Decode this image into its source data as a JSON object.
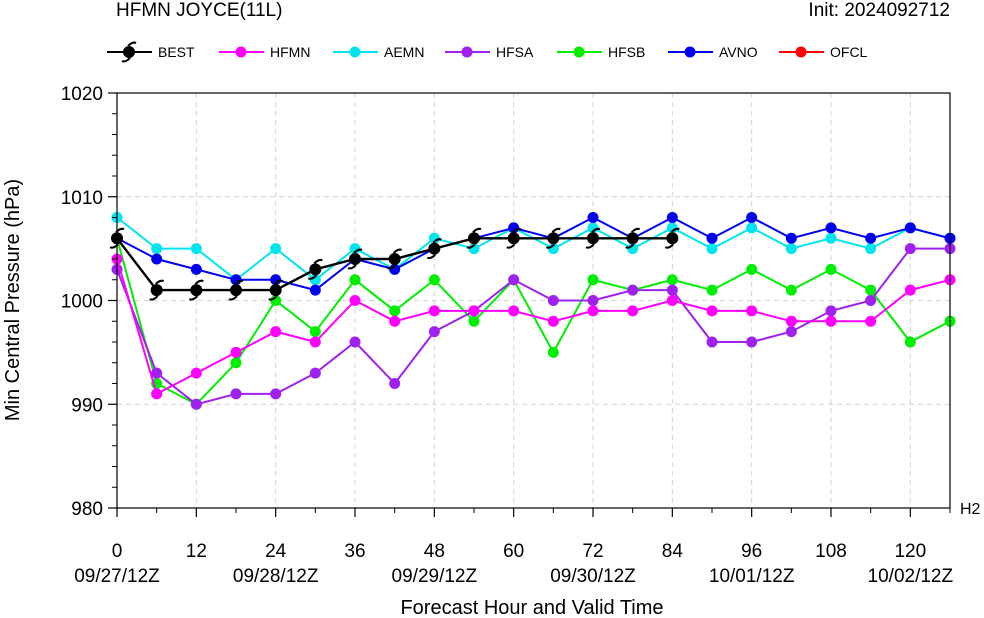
{
  "header": {
    "title": "HFMN JOYCE(11L)",
    "init": "Init: 2024092712"
  },
  "chart_data": {
    "type": "line",
    "xlabel": "Forecast Hour and Valid Time",
    "ylabel": "Min Central Pressure (hPa)",
    "xlim": [
      0,
      126
    ],
    "ylim": [
      980,
      1020
    ],
    "grid": true,
    "legend_position": "top",
    "corner_label": "H2",
    "y_ticks": [
      "980",
      "990",
      "1000",
      "1010",
      "1020"
    ],
    "x_ticks": [
      {
        "x": 0,
        "label": "0",
        "date": "09/27/12Z"
      },
      {
        "x": 12,
        "label": "12",
        "date": ""
      },
      {
        "x": 24,
        "label": "24",
        "date": "09/28/12Z"
      },
      {
        "x": 36,
        "label": "36",
        "date": ""
      },
      {
        "x": 48,
        "label": "48",
        "date": "09/29/12Z"
      },
      {
        "x": 60,
        "label": "60",
        "date": ""
      },
      {
        "x": 72,
        "label": "72",
        "date": "09/30/12Z"
      },
      {
        "x": 84,
        "label": "84",
        "date": ""
      },
      {
        "x": 96,
        "label": "96",
        "date": "10/01/12Z"
      },
      {
        "x": 108,
        "label": "108",
        "date": ""
      },
      {
        "x": 120,
        "label": "120",
        "date": "10/02/12Z"
      }
    ],
    "series": [
      {
        "name": "BEST",
        "color": "#000000",
        "marker": "hurricane",
        "x": [
          0,
          6,
          12,
          18,
          24,
          30,
          36,
          42,
          48,
          54,
          60,
          66,
          72,
          78,
          84
        ],
        "y": [
          1006,
          1001,
          1001,
          1001,
          1001,
          1003,
          1004,
          1004,
          1005,
          1006,
          1006,
          1006,
          1006,
          1006,
          1006
        ]
      },
      {
        "name": "HFMN",
        "color": "#ff00ff",
        "marker": "circle",
        "x": [
          0,
          6,
          12,
          18,
          24,
          30,
          36,
          42,
          48,
          54,
          60,
          66,
          72,
          78,
          84,
          90,
          96,
          102,
          108,
          114,
          120,
          126
        ],
        "y": [
          1004,
          991,
          993,
          995,
          997,
          996,
          1000,
          998,
          999,
          999,
          999,
          998,
          999,
          999,
          1000,
          999,
          999,
          998,
          998,
          998,
          1001,
          1002
        ]
      },
      {
        "name": "AEMN",
        "color": "#00e5ee",
        "marker": "circle",
        "x": [
          0,
          6,
          12,
          18,
          24,
          30,
          36,
          42,
          48,
          54,
          60,
          66,
          72,
          78,
          84,
          90,
          96,
          102,
          108,
          114,
          120,
          126
        ],
        "y": [
          1008,
          1005,
          1005,
          1002,
          1005,
          1002,
          1005,
          1003,
          1006,
          1005,
          1007,
          1005,
          1007,
          1005,
          1007,
          1005,
          1007,
          1005,
          1006,
          1005,
          1007,
          1006
        ]
      },
      {
        "name": "HFSA",
        "color": "#a020f0",
        "marker": "circle",
        "x": [
          0,
          6,
          12,
          18,
          24,
          30,
          36,
          42,
          48,
          54,
          60,
          66,
          72,
          78,
          84,
          90,
          96,
          102,
          108,
          114,
          120,
          126
        ],
        "y": [
          1003,
          993,
          990,
          991,
          991,
          993,
          996,
          992,
          997,
          999,
          1002,
          1000,
          1000,
          1001,
          1001,
          996,
          996,
          997,
          999,
          1000,
          1005,
          1005
        ]
      },
      {
        "name": "HFSB",
        "color": "#00ee00",
        "marker": "circle",
        "x": [
          0,
          6,
          12,
          18,
          24,
          30,
          36,
          42,
          48,
          54,
          60,
          66,
          72,
          78,
          84,
          90,
          96,
          102,
          108,
          114,
          120,
          126
        ],
        "y": [
          1006,
          992,
          990,
          994,
          1000,
          997,
          1002,
          999,
          1002,
          998,
          1002,
          995,
          1002,
          1001,
          1002,
          1001,
          1003,
          1001,
          1003,
          1001,
          996,
          998
        ]
      },
      {
        "name": "AVNO",
        "color": "#0000ee",
        "marker": "circle",
        "x": [
          0,
          6,
          12,
          18,
          24,
          30,
          36,
          42,
          48,
          54,
          60,
          66,
          72,
          78,
          84,
          90,
          96,
          102,
          108,
          114,
          120,
          126
        ],
        "y": [
          1006,
          1004,
          1003,
          1002,
          1002,
          1001,
          1004,
          1003,
          1005,
          1006,
          1007,
          1006,
          1008,
          1006,
          1008,
          1006,
          1008,
          1006,
          1007,
          1006,
          1007,
          1006
        ]
      },
      {
        "name": "OFCL",
        "color": "#ff0000",
        "marker": "circle",
        "x": [],
        "y": []
      }
    ]
  }
}
